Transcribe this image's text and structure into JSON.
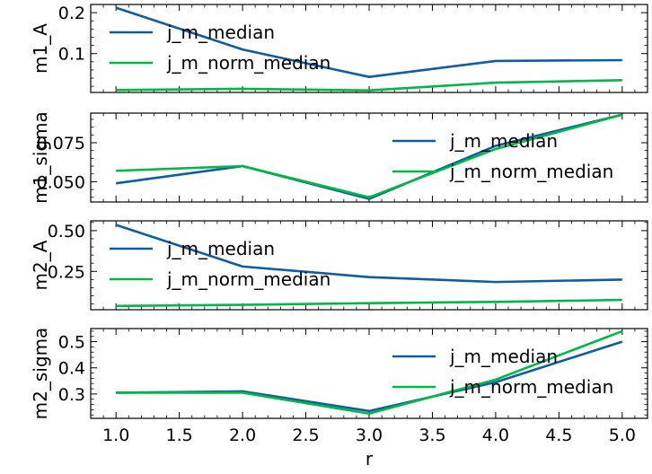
{
  "colors": {
    "j_m_median": "#0c5da5",
    "j_m_norm_median": "#00b945"
  },
  "chart_data": [
    {
      "type": "line",
      "ylabel": "m1_A",
      "xlim": [
        0.8,
        5.2
      ],
      "ylim": [
        0.005,
        0.22
      ],
      "yticks": [
        0.1,
        0.2
      ],
      "ytick_labels": [
        "0.1",
        "0.2"
      ],
      "x": [
        1.0,
        2.0,
        3.0,
        4.0,
        5.0
      ],
      "legend_position": "top-left",
      "series": [
        {
          "name": "j_m_median",
          "values": [
            0.212,
            0.11,
            0.043,
            0.082,
            0.084
          ]
        },
        {
          "name": "j_m_norm_median",
          "values": [
            0.011,
            0.014,
            0.01,
            0.029,
            0.035
          ]
        }
      ]
    },
    {
      "type": "line",
      "ylabel": "m1_sigma",
      "xlim": [
        0.8,
        5.2
      ],
      "ylim": [
        0.037,
        0.094
      ],
      "yticks": [
        0.05,
        0.075
      ],
      "ytick_labels": [
        "0.050",
        "0.075"
      ],
      "x": [
        1.0,
        2.0,
        3.0,
        4.0,
        5.0
      ],
      "legend_position": "top-right",
      "series": [
        {
          "name": "j_m_median",
          "values": [
            0.049,
            0.06,
            0.039,
            0.073,
            0.093
          ]
        },
        {
          "name": "j_m_norm_median",
          "values": [
            0.057,
            0.06,
            0.04,
            0.071,
            0.093
          ]
        }
      ]
    },
    {
      "type": "line",
      "ylabel": "m2_A",
      "xlim": [
        0.8,
        5.2
      ],
      "ylim": [
        0.015,
        0.56
      ],
      "yticks": [
        0.25,
        0.5
      ],
      "ytick_labels": [
        "0.25",
        "0.50"
      ],
      "x": [
        1.0,
        2.0,
        3.0,
        4.0,
        5.0
      ],
      "legend_position": "top-left",
      "series": [
        {
          "name": "j_m_median",
          "values": [
            0.535,
            0.28,
            0.215,
            0.185,
            0.2
          ]
        },
        {
          "name": "j_m_norm_median",
          "values": [
            0.038,
            0.045,
            0.055,
            0.063,
            0.075
          ]
        }
      ]
    },
    {
      "type": "line",
      "xlabel": "r",
      "ylabel": "m2_sigma",
      "xlim": [
        0.8,
        5.2
      ],
      "ylim": [
        0.207,
        0.55
      ],
      "yticks": [
        0.3,
        0.4,
        0.5
      ],
      "ytick_labels": [
        "0.3",
        "0.4",
        "0.5"
      ],
      "xticks": [
        1.0,
        1.5,
        2.0,
        2.5,
        3.0,
        3.5,
        4.0,
        4.5,
        5.0
      ],
      "xtick_labels": [
        "1.0",
        "1.5",
        "2.0",
        "2.5",
        "3.0",
        "3.5",
        "4.0",
        "4.5",
        "5.0"
      ],
      "x": [
        1.0,
        2.0,
        3.0,
        4.0,
        5.0
      ],
      "legend_position": "top-right",
      "series": [
        {
          "name": "j_m_median",
          "values": [
            0.305,
            0.31,
            0.235,
            0.345,
            0.5
          ]
        },
        {
          "name": "j_m_norm_median",
          "values": [
            0.305,
            0.305,
            0.225,
            0.355,
            0.54
          ]
        }
      ]
    }
  ]
}
